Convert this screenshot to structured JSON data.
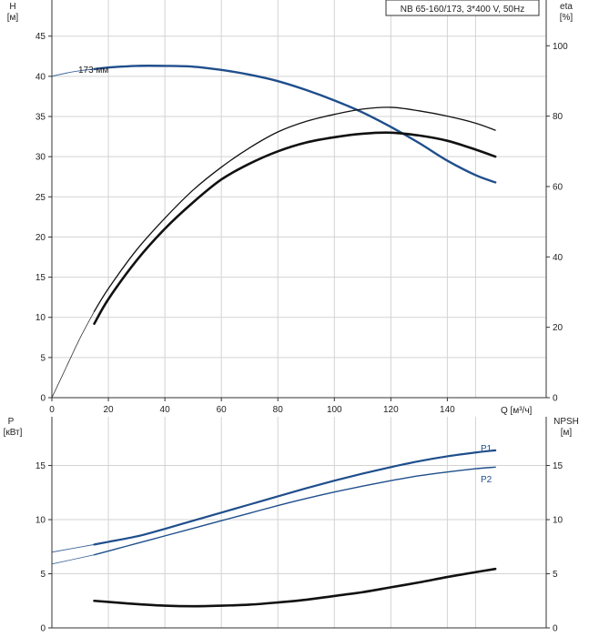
{
  "chart_data": [
    {
      "type": "line",
      "panel": "upper",
      "title": "NB 65-160/173, 3*400 V, 50Hz",
      "xlabel": "Q [м³/ч]",
      "ylabel": "H [м]",
      "ylabel_line1": "H",
      "ylabel_line2": "[м]",
      "y2label": "eta [%]",
      "y2label_line1": "eta",
      "y2label_line2": "[%]",
      "xlim": [
        0,
        175
      ],
      "ylim": [
        0,
        49.5
      ],
      "y2lim": [
        0,
        113
      ],
      "x_ticks": [
        0,
        20,
        40,
        60,
        80,
        100,
        120,
        140
      ],
      "y_ticks": [
        0,
        5,
        10,
        15,
        20,
        25,
        30,
        35,
        40,
        45
      ],
      "y2_ticks": [
        0,
        20,
        40,
        60,
        80,
        100
      ],
      "grid": true,
      "annotation": "173 мм",
      "series": [
        {
          "name": "173 мм",
          "role": "head",
          "color": "#1f4e8c",
          "x": [
            15,
            20,
            30,
            40,
            50,
            60,
            70,
            80,
            90,
            100,
            110,
            120,
            130,
            140,
            150,
            157
          ],
          "y": [
            40.9,
            41.1,
            41.3,
            41.3,
            41.2,
            40.8,
            40.2,
            39.4,
            38.3,
            37.0,
            35.5,
            33.7,
            31.7,
            29.5,
            27.7,
            26.8
          ],
          "ext_x": [
            0,
            5,
            10,
            15
          ],
          "ext_y": [
            40.0,
            40.4,
            40.7,
            40.9
          ]
        },
        {
          "role": "eta_thin",
          "axis": "y2",
          "color": "#111111",
          "x": [
            15,
            20,
            30,
            40,
            50,
            60,
            70,
            80,
            90,
            100,
            110,
            120,
            130,
            140,
            150,
            157
          ],
          "y": [
            24.5,
            31,
            42,
            51,
            59,
            65.5,
            71,
            75.5,
            78.5,
            80.5,
            82,
            82.5,
            81.5,
            80,
            78,
            76
          ],
          "ext_x": [
            0,
            5,
            10,
            15
          ],
          "ext_y": [
            0,
            8.5,
            17,
            24.5
          ]
        },
        {
          "role": "eta_thick",
          "axis": "y2",
          "color": "#111111",
          "x": [
            15,
            20,
            30,
            40,
            50,
            60,
            70,
            80,
            90,
            100,
            110,
            120,
            130,
            140,
            150,
            157
          ],
          "y": [
            21,
            28,
            39,
            48,
            55.5,
            62,
            66.5,
            70,
            72.5,
            74,
            75,
            75.3,
            74.5,
            73,
            70.5,
            68.5
          ]
        }
      ]
    },
    {
      "type": "line",
      "panel": "lower",
      "ylabel": "P [кВт]",
      "ylabel_line1": "P",
      "ylabel_line2": "[кВт]",
      "y2label": "NPSH [м]",
      "y2label_line1": "NPSH",
      "y2label_line2": "[м]",
      "xlim": [
        0,
        175
      ],
      "ylim": [
        0,
        19.5
      ],
      "y2lim": [
        0,
        19.5
      ],
      "y_ticks": [
        0,
        5,
        10,
        15
      ],
      "y2_ticks": [
        0,
        5,
        10,
        15
      ],
      "grid": true,
      "series": [
        {
          "name": "P1",
          "color": "#1f4e8c",
          "x": [
            15,
            20,
            30,
            40,
            50,
            60,
            70,
            80,
            90,
            100,
            110,
            120,
            130,
            140,
            150,
            157
          ],
          "y": [
            7.7,
            7.95,
            8.45,
            9.15,
            9.9,
            10.65,
            11.4,
            12.15,
            12.9,
            13.6,
            14.25,
            14.85,
            15.4,
            15.85,
            16.2,
            16.4
          ],
          "ext_x": [
            0,
            15
          ],
          "ext_y": [
            7.0,
            7.7
          ]
        },
        {
          "name": "P2",
          "color": "#1f4e8c",
          "x": [
            15,
            20,
            30,
            40,
            50,
            60,
            70,
            80,
            90,
            100,
            110,
            120,
            130,
            140,
            150,
            157
          ],
          "y": [
            6.75,
            7.1,
            7.8,
            8.5,
            9.2,
            9.9,
            10.6,
            11.3,
            11.95,
            12.55,
            13.1,
            13.6,
            14.05,
            14.4,
            14.7,
            14.85
          ],
          "ext_x": [
            0,
            15
          ],
          "ext_y": [
            5.9,
            6.75
          ]
        },
        {
          "role": "npsh",
          "axis": "y2",
          "color": "#111111",
          "x": [
            15,
            20,
            30,
            40,
            50,
            60,
            70,
            80,
            90,
            100,
            110,
            120,
            130,
            140,
            150,
            157
          ],
          "y": [
            2.5,
            2.4,
            2.2,
            2.05,
            2.0,
            2.05,
            2.15,
            2.35,
            2.6,
            2.95,
            3.3,
            3.75,
            4.2,
            4.7,
            5.15,
            5.45
          ]
        }
      ]
    }
  ]
}
